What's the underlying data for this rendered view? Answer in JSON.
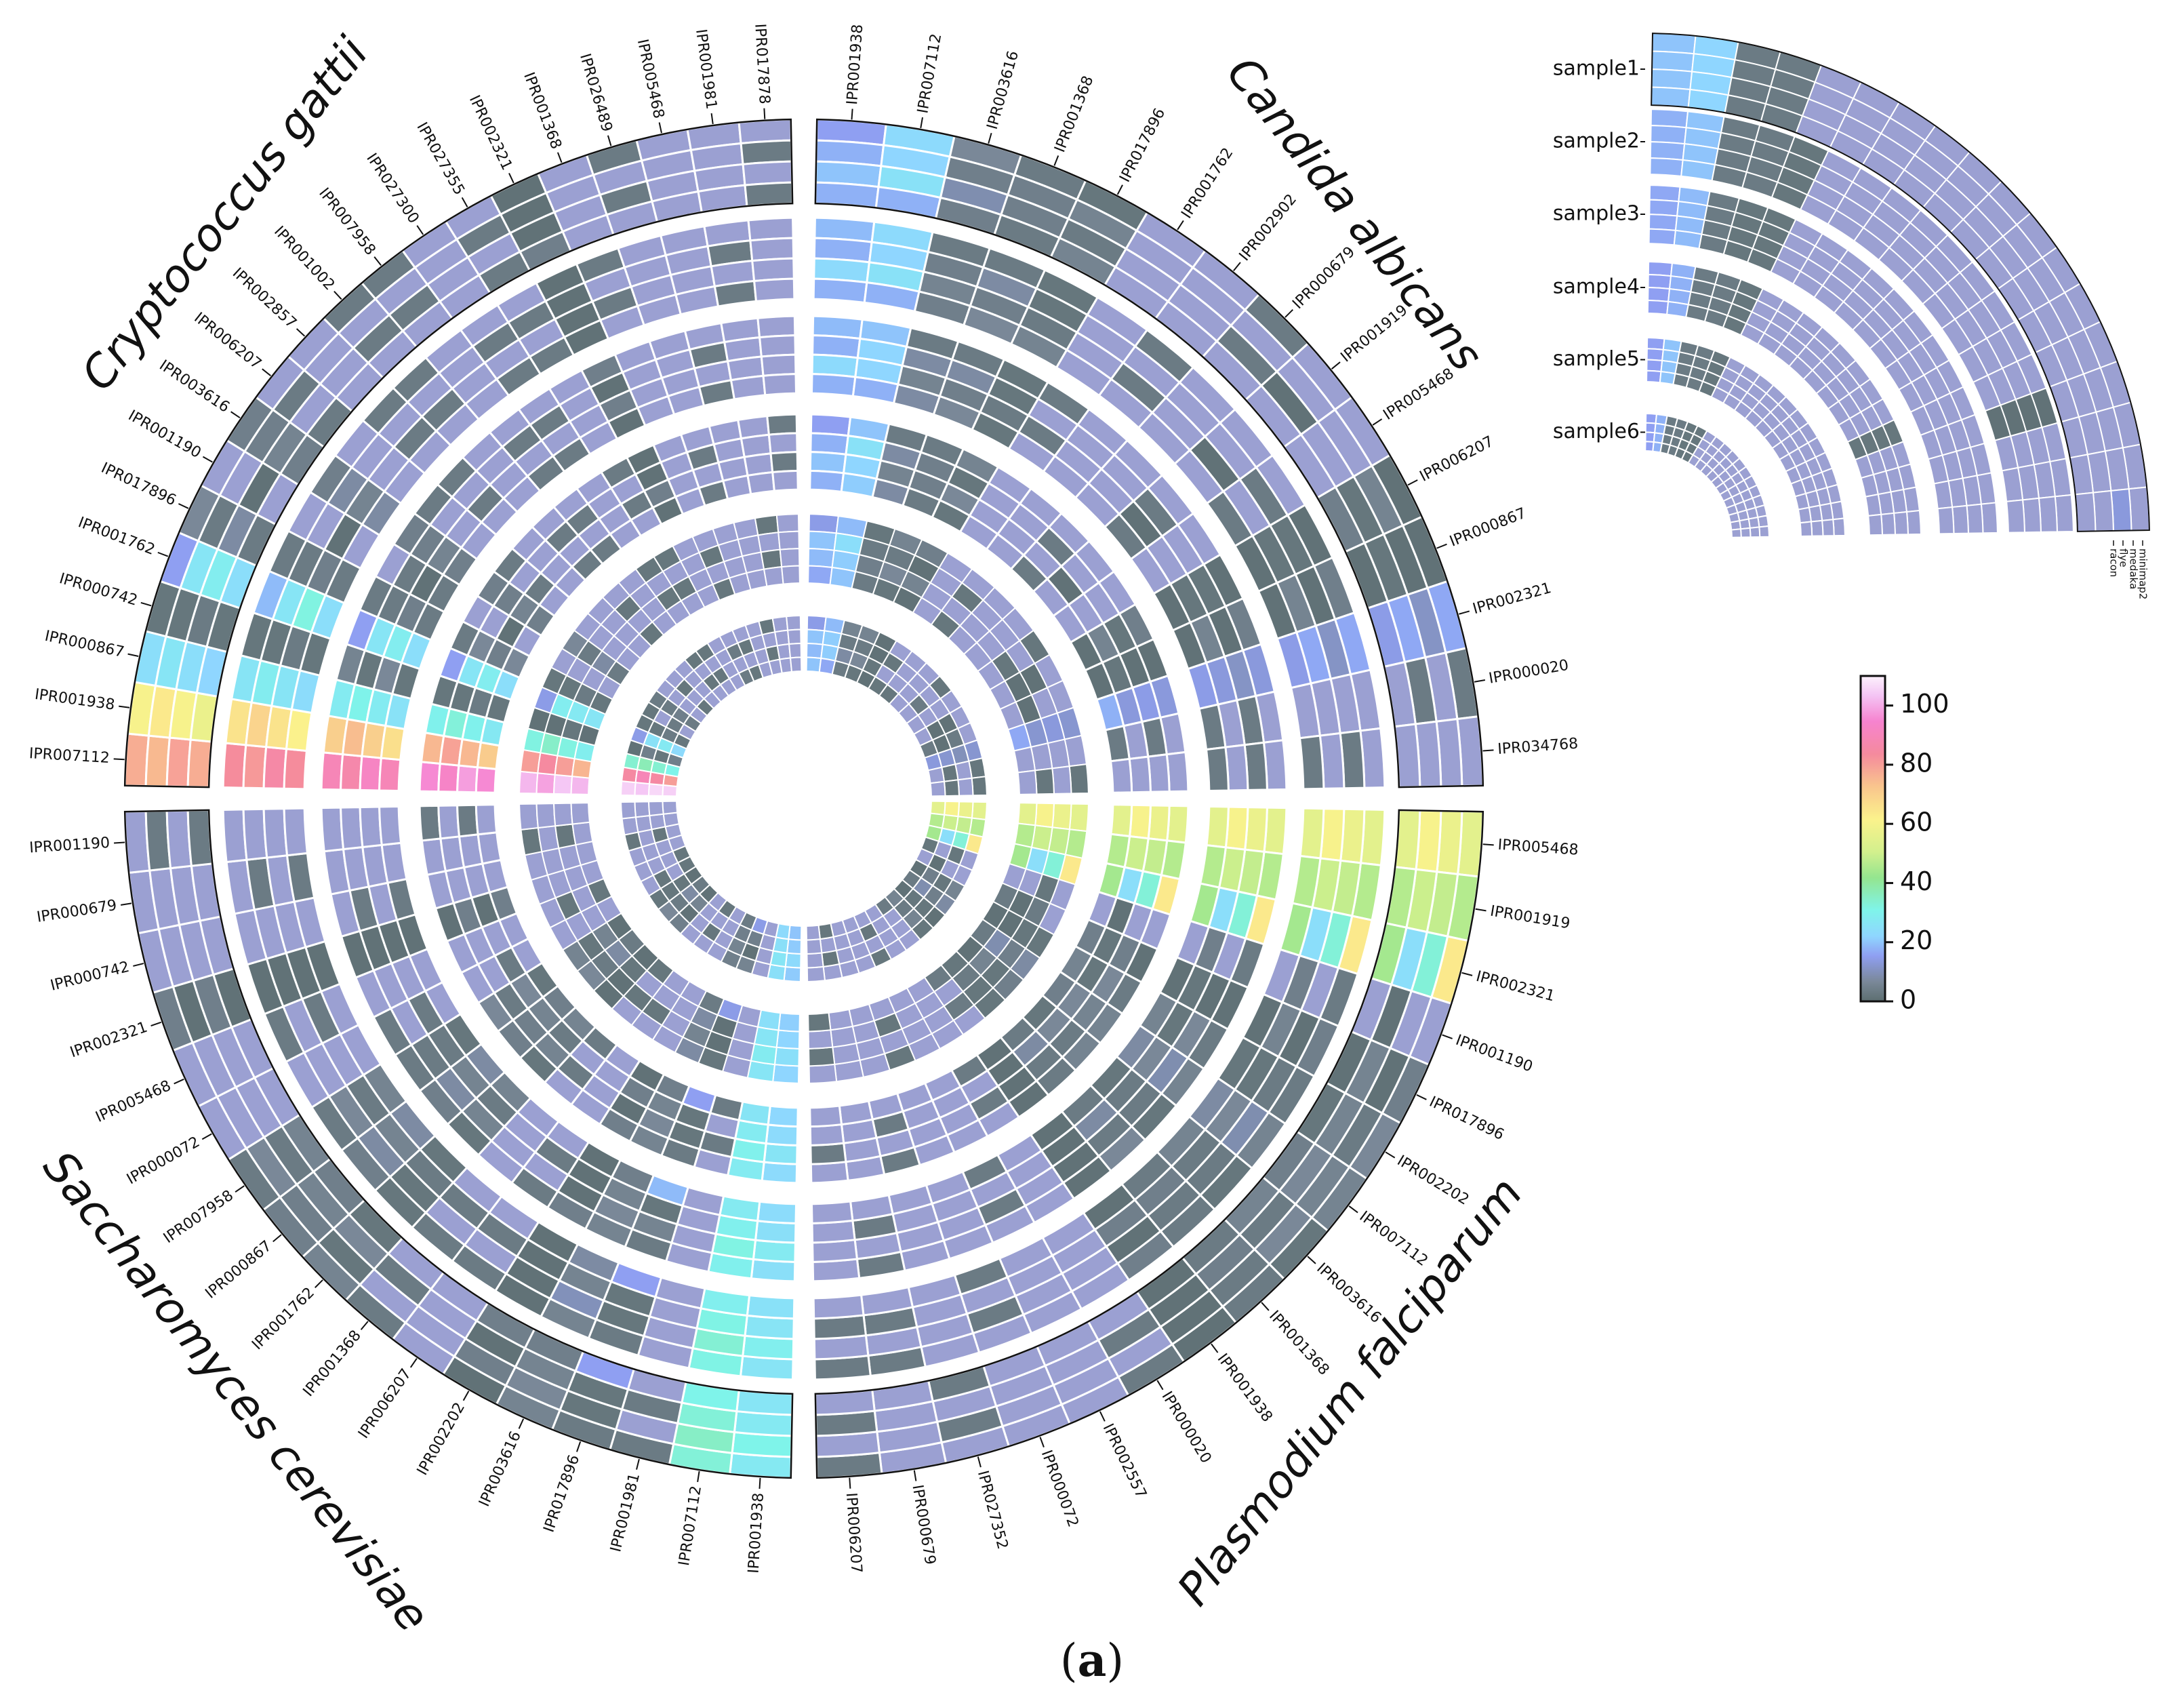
{
  "chart_data": {
    "type": "heatmap",
    "subtype": "circular-heatmap",
    "caption": {
      "open": "(",
      "letter": "a",
      "close": ")"
    },
    "value_range": [
      0,
      110
    ],
    "colorbar": {
      "ticks": [
        0,
        20,
        40,
        60,
        80,
        100
      ]
    },
    "samples": [
      "sample1",
      "sample2",
      "sample3",
      "sample4",
      "sample5",
      "sample6"
    ],
    "tools": [
      "racon",
      "flye",
      "medaka",
      "minimap2"
    ],
    "legend": {
      "samples": [
        "sample1",
        "sample2",
        "sample3",
        "sample4",
        "sample5",
        "sample6"
      ],
      "tool_labels": [
        "racon",
        "flye",
        "medaka",
        "minimap2"
      ]
    },
    "quadrants": [
      {
        "name": "Candida albicans",
        "domains": [
          "IPR001938",
          "IPR007112",
          "IPR003616",
          "IPR001368",
          "IPR017896",
          "IPR001762",
          "IPR002902",
          "IPR000679",
          "IPR001919",
          "IPR005468",
          "IPR006207",
          "IPR000867",
          "IPR002321",
          "IPR000020",
          "IPR034768"
        ],
        "sample1": [
          [
            14,
            16,
            18,
            16
          ],
          [
            18,
            20,
            20,
            16
          ],
          [
            3,
            4,
            5,
            4
          ],
          [
            3,
            4,
            4,
            3
          ],
          [
            2,
            2,
            3,
            2
          ],
          [
            0,
            0,
            0,
            0
          ],
          [
            0,
            0,
            0,
            0
          ],
          [
            0,
            0,
            0,
            0
          ],
          [
            0,
            0,
            1,
            0
          ],
          [
            0,
            0,
            0,
            0
          ],
          [
            1,
            2,
            2,
            1
          ],
          [
            1,
            1,
            2,
            1
          ],
          [
            12,
            10,
            12,
            13
          ],
          [
            0,
            0,
            0,
            0
          ],
          [
            0,
            0,
            0,
            0
          ]
        ]
      },
      {
        "name": "Plasmodium falciparum",
        "domains": [
          "IPR005468",
          "IPR001919",
          "IPR002321",
          "IPR001190",
          "IPR017896",
          "IPR002202",
          "IPR007112",
          "IPR003616",
          "IPR001368",
          "IPR001938",
          "IPR000020",
          "IPR002557",
          "IPR000072",
          "IPR027352",
          "IPR000679",
          "IPR006207"
        ],
        "sample1": [
          [
            50,
            52,
            55,
            50
          ],
          [
            42,
            44,
            45,
            42
          ],
          [
            58,
            30,
            22,
            40
          ],
          [
            0,
            0,
            1,
            0
          ],
          [
            1,
            1,
            2,
            1
          ],
          [
            3,
            3,
            2,
            2
          ],
          [
            5,
            5,
            6,
            4
          ],
          [
            2,
            3,
            3,
            2
          ],
          [
            3,
            3,
            4,
            3
          ],
          [
            1,
            1,
            1,
            1
          ],
          [
            0,
            0,
            0,
            0
          ],
          [
            0,
            0,
            0,
            0
          ],
          [
            0,
            0,
            0,
            0
          ],
          [
            0,
            0,
            0,
            0
          ],
          [
            0,
            0,
            0,
            0
          ],
          [
            0,
            0,
            0,
            0
          ]
        ]
      },
      {
        "name": "Saccharomyces cerevisiae",
        "domains": [
          "IPR001938",
          "IPR007112",
          "IPR001981",
          "IPR017896",
          "IPR003616",
          "IPR002202",
          "IPR006207",
          "IPR001368",
          "IPR001762",
          "IPR000867",
          "IPR007958",
          "IPR000072",
          "IPR005468",
          "IPR002321",
          "IPR000742",
          "IPR000679",
          "IPR001190"
        ],
        "sample1": [
          [
            25,
            28,
            25,
            24
          ],
          [
            30,
            32,
            30,
            28
          ],
          [
            0,
            0,
            0,
            0
          ],
          [
            3,
            2,
            2,
            14
          ],
          [
            5,
            6,
            5,
            4
          ],
          [
            1,
            1,
            1,
            1
          ],
          [
            0,
            0,
            0,
            0
          ],
          [
            0,
            0,
            0,
            0
          ],
          [
            2,
            2,
            3,
            2
          ],
          [
            4,
            4,
            5,
            4
          ],
          [
            3,
            3,
            3,
            2
          ],
          [
            0,
            0,
            0,
            0
          ],
          [
            0,
            0,
            0,
            0
          ],
          [
            1,
            1,
            1,
            1
          ],
          [
            0,
            0,
            0,
            0
          ],
          [
            0,
            0,
            0,
            0
          ],
          [
            0,
            0,
            0,
            0
          ]
        ]
      },
      {
        "name": "Cryptococcus gattii",
        "domains": [
          "IPR007112",
          "IPR001938",
          "IPR000867",
          "IPR000742",
          "IPR001762",
          "IPR017896",
          "IPR001190",
          "IPR003616",
          "IPR006207",
          "IPR002857",
          "IPR001002",
          "IPR007958",
          "IPR027300",
          "IPR027355",
          "IPR002321",
          "IPR001368",
          "IPR026489",
          "IPR005468",
          "IPR001981",
          "IPR017878"
        ],
        "sample1": [
          [
            70,
            68,
            72,
            70
          ],
          [
            55,
            58,
            55,
            52
          ],
          [
            22,
            24,
            22,
            20
          ],
          [
            2,
            2,
            3,
            2
          ],
          [
            14,
            24,
            26,
            22
          ],
          [
            3,
            3,
            4,
            3
          ],
          [
            0,
            0,
            1,
            0
          ],
          [
            4,
            4,
            5,
            4
          ],
          [
            0,
            0,
            0,
            0
          ],
          [
            0,
            0,
            0,
            0
          ],
          [
            0,
            0,
            0,
            0
          ],
          [
            0,
            0,
            0,
            0
          ],
          [
            0,
            0,
            0,
            0
          ],
          [
            0,
            0,
            0,
            0
          ],
          [
            1,
            1,
            1,
            1
          ],
          [
            0,
            0,
            0,
            0
          ],
          [
            0,
            0,
            0,
            0
          ],
          [
            0,
            0,
            0,
            0
          ],
          [
            0,
            0,
            0,
            0
          ],
          [
            0,
            0,
            0,
            0
          ]
        ]
      }
    ]
  }
}
